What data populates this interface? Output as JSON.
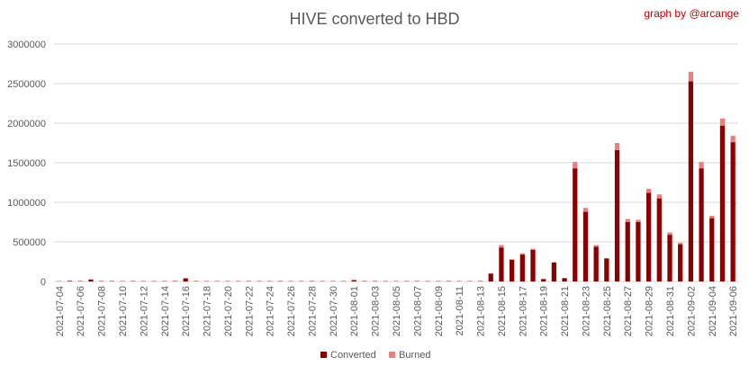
{
  "chart_data": {
    "type": "bar",
    "stacked": true,
    "title": "HIVE converted to HBD",
    "credit": "graph by @arcange",
    "ylim": [
      0,
      3000000
    ],
    "yticks": [
      "0",
      "500000",
      "1000000",
      "1500000",
      "2000000",
      "2500000",
      "3000000"
    ],
    "grid": true,
    "legend_position": "bottom",
    "categories": [
      "2021-07-04",
      "2021-07-05",
      "2021-07-06",
      "2021-07-07",
      "2021-07-08",
      "2021-07-09",
      "2021-07-10",
      "2021-07-11",
      "2021-07-12",
      "2021-07-13",
      "2021-07-14",
      "2021-07-15",
      "2021-07-16",
      "2021-07-17",
      "2021-07-18",
      "2021-07-19",
      "2021-07-20",
      "2021-07-21",
      "2021-07-22",
      "2021-07-23",
      "2021-07-24",
      "2021-07-25",
      "2021-07-26",
      "2021-07-27",
      "2021-07-28",
      "2021-07-29",
      "2021-07-30",
      "2021-07-31",
      "2021-08-01",
      "2021-08-02",
      "2021-08-03",
      "2021-08-04",
      "2021-08-05",
      "2021-08-06",
      "2021-08-07",
      "2021-08-08",
      "2021-08-09",
      "2021-08-10",
      "2021-08-11",
      "2021-08-12",
      "2021-08-13",
      "2021-08-14",
      "2021-08-15",
      "2021-08-16",
      "2021-08-17",
      "2021-08-18",
      "2021-08-19",
      "2021-08-20",
      "2021-08-21",
      "2021-08-22",
      "2021-08-23",
      "2021-08-24",
      "2021-08-25",
      "2021-08-26",
      "2021-08-27",
      "2021-08-28",
      "2021-08-29",
      "2021-08-30",
      "2021-08-31",
      "2021-09-01",
      "2021-09-02",
      "2021-09-03",
      "2021-09-04",
      "2021-09-05",
      "2021-09-06"
    ],
    "tick_labels": [
      "2021-07-04",
      "2021-07-06",
      "2021-07-08",
      "2021-07-10",
      "2021-07-12",
      "2021-07-14",
      "2021-07-16",
      "2021-07-18",
      "2021-07-20",
      "2021-07-22",
      "2021-07-24",
      "2021-07-26",
      "2021-07-28",
      "2021-07-30",
      "2021-08-01",
      "2021-08-03",
      "2021-08-05",
      "2021-08-07",
      "2021-08-09",
      "2021-08-11",
      "2021-08-13",
      "2021-08-15",
      "2021-08-17",
      "2021-08-19",
      "2021-08-21",
      "2021-08-23",
      "2021-08-25",
      "2021-08-27",
      "2021-08-29",
      "2021-08-31",
      "2021-09-02",
      "2021-09-04",
      "2021-09-06"
    ],
    "series": [
      {
        "name": "Converted",
        "color": "#8b0000",
        "values": [
          3000,
          8000,
          5000,
          25000,
          5000,
          5000,
          4000,
          5000,
          4000,
          4000,
          4000,
          5000,
          40000,
          5000,
          4000,
          4000,
          4000,
          4000,
          5000,
          4000,
          4000,
          5000,
          4000,
          4000,
          5000,
          4000,
          4000,
          4000,
          18000,
          5000,
          5000,
          4000,
          4000,
          4000,
          5000,
          4000,
          4000,
          5000,
          4000,
          4000,
          5000,
          100000,
          430000,
          275000,
          340000,
          400000,
          30000,
          240000,
          40000,
          1430000,
          880000,
          440000,
          290000,
          1660000,
          750000,
          750000,
          1120000,
          1050000,
          590000,
          470000,
          2530000,
          1430000,
          800000,
          1970000,
          1760000
        ]
      },
      {
        "name": "Burned",
        "color": "#e88080",
        "values": [
          0,
          0,
          0,
          0,
          0,
          0,
          0,
          0,
          0,
          0,
          0,
          0,
          0,
          0,
          0,
          0,
          0,
          0,
          0,
          0,
          0,
          0,
          0,
          0,
          0,
          0,
          0,
          0,
          0,
          0,
          0,
          0,
          0,
          0,
          0,
          0,
          0,
          0,
          0,
          0,
          0,
          5000,
          30000,
          5000,
          15000,
          15000,
          5000,
          5000,
          5000,
          80000,
          50000,
          20000,
          5000,
          90000,
          40000,
          30000,
          50000,
          50000,
          30000,
          20000,
          120000,
          80000,
          30000,
          90000,
          80000
        ]
      }
    ]
  }
}
